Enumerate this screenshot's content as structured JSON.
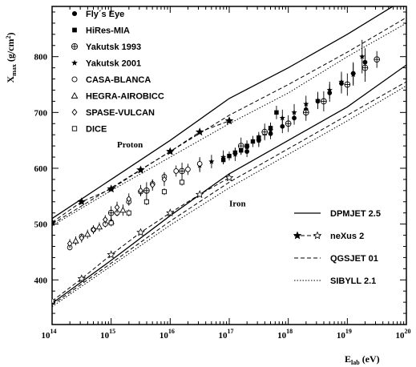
{
  "chart_data": {
    "type": "scatter",
    "ylabel_main": "X",
    "ylabel_sub": "max",
    "ylabel_unit": " (g/cm",
    "ylabel_sup": "2",
    "ylabel_close": ")",
    "xlabel_main": "E",
    "xlabel_sub": "lab",
    "xlabel_unit": " (eV)",
    "xlog": true,
    "xlim": [
      14,
      20
    ],
    "ylim": [
      320,
      890
    ],
    "x_ticks": [
      {
        "base": "10",
        "exp": "14",
        "value": 14
      },
      {
        "base": "10",
        "exp": "15",
        "value": 15
      },
      {
        "base": "10",
        "exp": "16",
        "value": 16
      },
      {
        "base": "10",
        "exp": "17",
        "value": 17
      },
      {
        "base": "10",
        "exp": "18",
        "value": 18
      },
      {
        "base": "10",
        "exp": "19",
        "value": 19
      },
      {
        "base": "10",
        "exp": "20",
        "value": 20
      }
    ],
    "y_ticks": [
      {
        "label": "400",
        "value": 400
      },
      {
        "label": "500",
        "value": 500
      },
      {
        "label": "600",
        "value": 600
      },
      {
        "label": "700",
        "value": 700
      },
      {
        "label": "800",
        "value": 800
      }
    ],
    "annotations": [
      {
        "text": "Proton",
        "x": 15.1,
        "y": 637
      },
      {
        "text": "Iron",
        "x": 17.0,
        "y": 532
      }
    ],
    "marker_legend": [
      {
        "name": "Fly´s Eye",
        "marker": "filled-circle"
      },
      {
        "name": "HiRes-MIA",
        "marker": "filled-square"
      },
      {
        "name": "Yakutsk 1993",
        "marker": "cross-circle"
      },
      {
        "name": "Yakutsk 2001",
        "marker": "filled-star"
      },
      {
        "name": "CASA-BLANCA",
        "marker": "open-circle"
      },
      {
        "name": "HEGRA-AIROBICC",
        "marker": "open-triangle"
      },
      {
        "name": "SPASE-VULCAN",
        "marker": "open-diamond"
      },
      {
        "name": "DICE",
        "marker": "open-square"
      }
    ],
    "model_legend": [
      {
        "name": "DPMJET 2.5",
        "style": "solid"
      },
      {
        "name": "neXus 2",
        "style": "star-dash"
      },
      {
        "name": "QGSJET 01",
        "style": "dashed"
      },
      {
        "name": "SIBYLL 2.1",
        "style": "dotted"
      }
    ],
    "model_series": [
      {
        "name": "DPMJET 2.5",
        "primary": "Proton",
        "style": "solid",
        "x": [
          14,
          15,
          16,
          17,
          18,
          19,
          20
        ],
        "y": [
          510,
          580,
          650,
          725,
          780,
          840,
          905
        ]
      },
      {
        "name": "DPMJET 2.5",
        "primary": "Iron",
        "style": "solid",
        "x": [
          14,
          15,
          16,
          17,
          18,
          19,
          20
        ],
        "y": [
          358,
          435,
          515,
          590,
          650,
          710,
          785
        ]
      },
      {
        "name": "neXus 2",
        "primary": "Proton",
        "style": "star-dash",
        "x": [
          14,
          14.5,
          15,
          15.5,
          16,
          16.5,
          17
        ],
        "y": [
          503,
          540,
          563,
          597,
          630,
          665,
          685
        ]
      },
      {
        "name": "neXus 2",
        "primary": "Iron",
        "style": "star-dash",
        "x": [
          14,
          14.5,
          15,
          15.5,
          16,
          16.5,
          17
        ],
        "y": [
          362,
          402,
          445,
          485,
          520,
          553,
          583
        ]
      },
      {
        "name": "QGSJET 01",
        "primary": "Proton",
        "style": "dashed",
        "x": [
          14,
          15,
          16,
          17,
          18,
          19,
          20
        ],
        "y": [
          500,
          565,
          630,
          695,
          750,
          808,
          870
        ]
      },
      {
        "name": "QGSJET 01",
        "primary": "Iron",
        "style": "dashed",
        "x": [
          14,
          15,
          16,
          17,
          18,
          19,
          20
        ],
        "y": [
          355,
          430,
          505,
          575,
          635,
          695,
          755
        ]
      },
      {
        "name": "SIBYLL 2.1",
        "primary": "Proton",
        "style": "dotted",
        "x": [
          14,
          15,
          16,
          17,
          18,
          19,
          20
        ],
        "y": [
          497,
          560,
          620,
          680,
          735,
          800,
          860
        ]
      },
      {
        "name": "SIBYLL 2.1",
        "primary": "Iron",
        "style": "dotted",
        "x": [
          14,
          15,
          16,
          17,
          18,
          19,
          20
        ],
        "y": [
          352,
          425,
          498,
          565,
          625,
          685,
          748
        ]
      }
    ],
    "data_series": [
      {
        "name": "Fly´s Eye",
        "marker": "filled-circle",
        "points": [
          [
            17.3,
            630,
            10
          ],
          [
            17.5,
            650,
            10
          ],
          [
            17.7,
            662,
            10
          ],
          [
            17.9,
            675,
            12
          ],
          [
            18.1,
            690,
            12
          ],
          [
            18.3,
            705,
            12
          ],
          [
            18.5,
            720,
            14
          ],
          [
            18.7,
            735,
            16
          ],
          [
            18.9,
            752,
            18
          ],
          [
            19.1,
            770,
            20
          ],
          [
            19.3,
            790,
            25
          ]
        ]
      },
      {
        "name": "HiRes-MIA",
        "marker": "filled-square",
        "points": [
          [
            16.9,
            615,
            8
          ],
          [
            17.0,
            622,
            8
          ],
          [
            17.1,
            628,
            8
          ],
          [
            17.2,
            632,
            8
          ],
          [
            17.3,
            640,
            8
          ],
          [
            17.4,
            648,
            10
          ],
          [
            17.5,
            655,
            10
          ],
          [
            17.6,
            663,
            10
          ],
          [
            17.7,
            672,
            10
          ],
          [
            17.8,
            700,
            12
          ]
        ]
      },
      {
        "name": "Yakutsk 1993",
        "marker": "cross-circle",
        "points": [
          [
            15.0,
            520,
            12
          ],
          [
            15.6,
            560,
            15
          ],
          [
            16.2,
            595,
            15
          ],
          [
            17.2,
            640,
            15
          ],
          [
            17.6,
            665,
            15
          ],
          [
            18.0,
            680,
            15
          ],
          [
            18.3,
            700,
            15
          ],
          [
            18.6,
            720,
            18
          ],
          [
            19.0,
            750,
            20
          ],
          [
            19.3,
            780,
            25
          ],
          [
            19.5,
            795,
            15
          ]
        ]
      },
      {
        "name": "Yakutsk 2001",
        "marker": "filled-star",
        "points": [
          [
            16.5,
            605,
            12
          ],
          [
            16.7,
            612,
            12
          ],
          [
            16.9,
            620,
            12
          ],
          [
            17.1,
            625,
            12
          ],
          [
            17.3,
            638,
            12
          ],
          [
            17.5,
            650,
            12
          ],
          [
            17.7,
            668,
            12
          ],
          [
            17.9,
            690,
            15
          ],
          [
            18.1,
            700,
            15
          ],
          [
            18.3,
            715,
            15
          ],
          [
            18.5,
            722,
            15
          ],
          [
            18.7,
            740,
            15
          ],
          [
            18.9,
            755,
            18
          ],
          [
            19.1,
            768,
            20
          ],
          [
            19.25,
            800,
            30
          ]
        ]
      },
      {
        "name": "CASA-BLANCA",
        "marker": "open-circle",
        "points": [
          [
            14.3,
            458,
            5
          ],
          [
            14.5,
            478,
            5
          ],
          [
            14.7,
            490,
            6
          ],
          [
            14.9,
            500,
            6
          ],
          [
            15.1,
            520,
            6
          ],
          [
            15.3,
            540,
            7
          ],
          [
            15.5,
            558,
            8
          ],
          [
            15.7,
            572,
            8
          ],
          [
            15.9,
            585,
            8
          ],
          [
            16.1,
            595,
            10
          ],
          [
            16.3,
            598,
            10
          ],
          [
            16.5,
            608,
            12
          ]
        ]
      },
      {
        "name": "HEGRA-AIROBICC",
        "marker": "open-triangle",
        "points": [
          [
            14.4,
            470,
            8
          ],
          [
            14.6,
            482,
            8
          ],
          [
            14.8,
            495,
            8
          ],
          [
            15.0,
            505,
            8
          ],
          [
            15.2,
            525,
            10
          ]
        ]
      },
      {
        "name": "SPASE-VULCAN",
        "marker": "open-diamond",
        "points": [
          [
            14.3,
            465,
            8
          ],
          [
            14.5,
            475,
            8
          ],
          [
            14.7,
            490,
            8
          ],
          [
            14.9,
            508,
            8
          ],
          [
            15.1,
            530,
            10
          ],
          [
            15.3,
            545,
            10
          ],
          [
            15.5,
            560,
            10
          ],
          [
            15.7,
            570,
            10
          ],
          [
            15.9,
            580,
            12
          ]
        ]
      },
      {
        "name": "DICE",
        "marker": "open-square",
        "points": [
          [
            15.0,
            502,
            6
          ],
          [
            15.3,
            520,
            6
          ],
          [
            15.6,
            540,
            6
          ],
          [
            15.9,
            558,
            6
          ],
          [
            16.2,
            575,
            6
          ]
        ]
      }
    ]
  }
}
